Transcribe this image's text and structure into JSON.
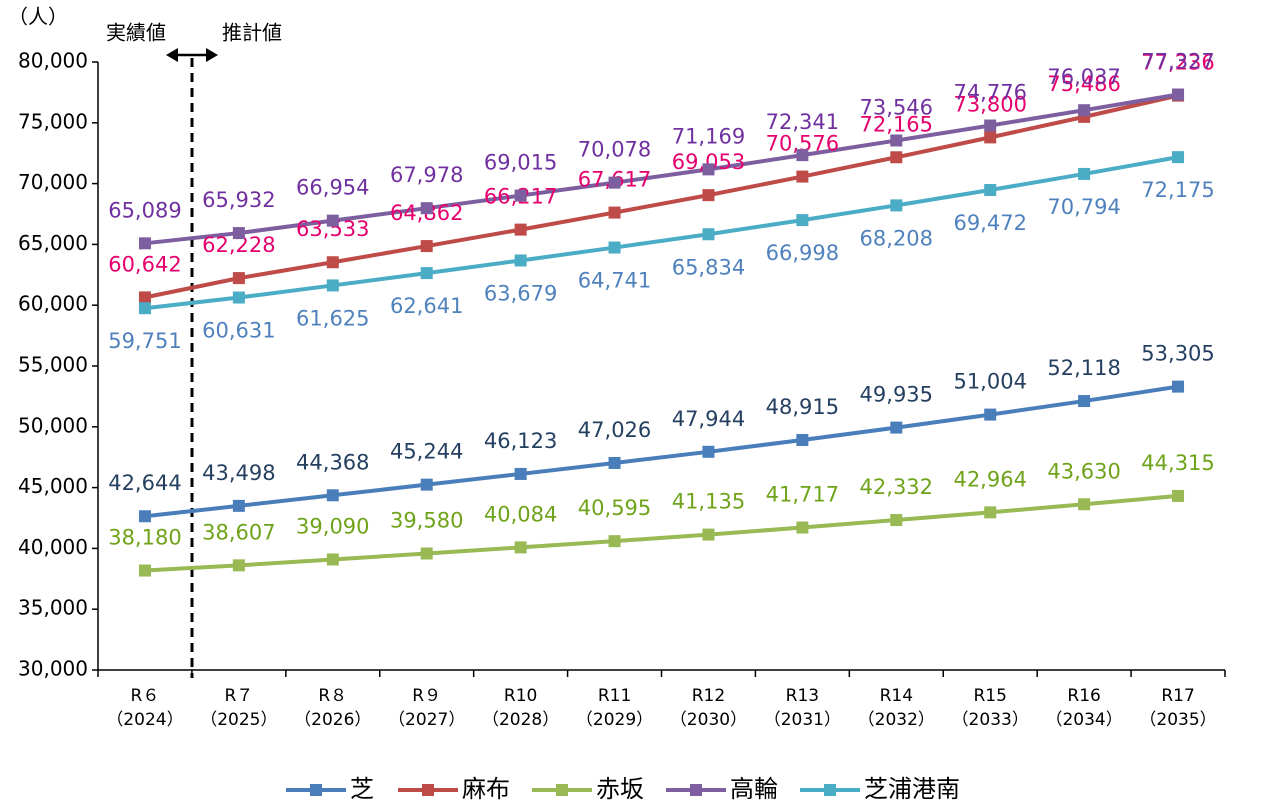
{
  "chart_data": {
    "type": "line",
    "y_unit": "（人）",
    "annotations": [
      "実績値",
      "推計値"
    ],
    "categories": [
      "R６",
      "R７",
      "R８",
      "R９",
      "R10",
      "R11",
      "R12",
      "R13",
      "R14",
      "R15",
      "R16",
      "R17"
    ],
    "category_sublabels": [
      "（2024）",
      "（2025）",
      "（2026）",
      "（2027）",
      "（2028）",
      "（2029）",
      "（2030）",
      "（2031）",
      "（2032）",
      "（2033）",
      "（2034）",
      "（2035）"
    ],
    "ylim": [
      30000,
      80000
    ],
    "yticks": [
      {
        "value": 30000,
        "label": "30,000"
      },
      {
        "value": 35000,
        "label": "35,000"
      },
      {
        "value": 40000,
        "label": "40,000"
      },
      {
        "value": 45000,
        "label": "45,000"
      },
      {
        "value": 50000,
        "label": "50,000"
      },
      {
        "value": 55000,
        "label": "55,000"
      },
      {
        "value": 60000,
        "label": "60,000"
      },
      {
        "value": 65000,
        "label": "65,000"
      },
      {
        "value": 70000,
        "label": "70,000"
      },
      {
        "value": 75000,
        "label": "75,000"
      },
      {
        "value": 80000,
        "label": "80,000"
      }
    ],
    "grid": false,
    "legend": "bottom",
    "series": [
      {
        "name": "芝",
        "color": "#4a7ebb",
        "label_color": "#243f60",
        "label_position": "above",
        "values": [
          42644,
          43498,
          44368,
          45244,
          46123,
          47026,
          47944,
          48915,
          49935,
          51004,
          52118,
          53305
        ],
        "value_labels": [
          "42,644",
          "43,498",
          "44,368",
          "45,244",
          "46,123",
          "47,026",
          "47,944",
          "48,915",
          "49,935",
          "51,004",
          "52,118",
          "53,305"
        ]
      },
      {
        "name": "麻布",
        "color": "#be4b48",
        "label_color": "#e6006e",
        "label_position": "above",
        "values": [
          60642,
          62228,
          63533,
          64862,
          66217,
          67617,
          69053,
          70576,
          72165,
          73800,
          75486,
          77236
        ],
        "value_labels": [
          "60,642",
          "62,228",
          "63,533",
          "64,862",
          "66,217",
          "67,617",
          "69,053",
          "70,576",
          "72,165",
          "73,800",
          "75,486",
          "77,236"
        ]
      },
      {
        "name": "赤坂",
        "color": "#98b954",
        "label_color": "#6fa31a",
        "label_position": "above",
        "values": [
          38180,
          38607,
          39090,
          39580,
          40084,
          40595,
          41135,
          41717,
          42332,
          42964,
          43630,
          44315
        ],
        "value_labels": [
          "38,180",
          "38,607",
          "39,090",
          "39,580",
          "40,084",
          "40,595",
          "41,135",
          "41,717",
          "42,332",
          "42,964",
          "43,630",
          "44,315"
        ]
      },
      {
        "name": "高輪",
        "color": "#7d5fa0",
        "label_color": "#7030a0",
        "label_position": "above",
        "values": [
          65089,
          65932,
          66954,
          67978,
          69015,
          70078,
          71169,
          72341,
          73546,
          74776,
          76037,
          77327
        ],
        "value_labels": [
          "65,089",
          "65,932",
          "66,954",
          "67,978",
          "69,015",
          "70,078",
          "71,169",
          "72,341",
          "73,546",
          "74,776",
          "76,037",
          "77,327"
        ]
      },
      {
        "name": "芝浦港南",
        "color": "#4bacc6",
        "label_color": "#4f81bd",
        "label_position": "below",
        "values": [
          59751,
          60631,
          61625,
          62641,
          63679,
          64741,
          65834,
          66998,
          68208,
          69472,
          70794,
          72175
        ],
        "value_labels": [
          "59,751",
          "60,631",
          "61,625",
          "62,641",
          "63,679",
          "64,741",
          "65,834",
          "66,998",
          "68,208",
          "69,472",
          "70,794",
          "72,175"
        ]
      }
    ]
  }
}
